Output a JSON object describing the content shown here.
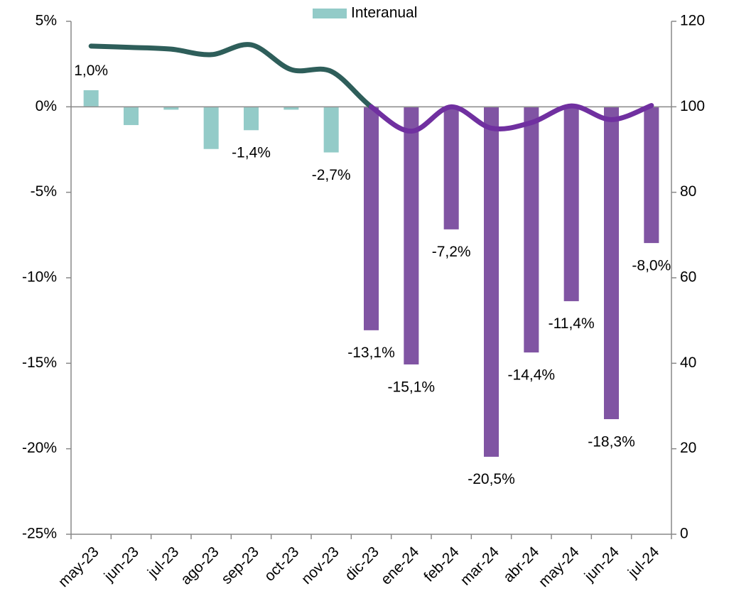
{
  "chart_data": {
    "type": "bar_line",
    "categories": [
      "may-23",
      "jun-23",
      "jul-23",
      "ago-23",
      "sep-23",
      "oct-23",
      "nov-23",
      "dic-23",
      "ene-24",
      "feb-24",
      "mar-24",
      "abr-24",
      "may-24",
      "jun-24",
      "jul-24"
    ],
    "series": [
      {
        "name": "Interanual",
        "color": "#93cbc8",
        "colors": [
          "#93cbc8",
          "#93cbc8",
          "#93cbc8",
          "#93cbc8",
          "#93cbc8",
          "#93cbc8",
          "#93cbc8",
          "#8054a3",
          "#8054a3",
          "#8054a3",
          "#8054a3",
          "#8054a3",
          "#8054a3",
          "#8054a3",
          "#8054a3"
        ],
        "values": [
          1.0,
          -1.1,
          -0.2,
          -2.5,
          -1.4,
          -0.2,
          -2.7,
          -13.1,
          -15.1,
          -7.2,
          -20.5,
          -14.4,
          -11.4,
          -18.3,
          -8.0
        ],
        "value_labels": [
          "1,0%",
          null,
          null,
          null,
          "-1,4%",
          null,
          "-2,7%",
          "-13,1%",
          "-15,1%",
          "-7,2%",
          "-20,5%",
          "-14,4%",
          "-11,4%",
          "-18,3%",
          "-8,0%"
        ]
      },
      {
        "axis": "y2",
        "type": "line",
        "color": "#2e5e5a",
        "colors": [
          "#2e5e5a",
          "#2e5e5a",
          "#2e5e5a",
          "#2e5e5a",
          "#2e5e5a",
          "#2e5e5a",
          "#2e5e5a",
          "#7030a0",
          "#7030a0",
          "#7030a0",
          "#7030a0",
          "#7030a0",
          "#7030a0",
          "#7030a0",
          "#7030a0"
        ],
        "values": [
          114.2,
          113.9,
          113.5,
          112.2,
          114.5,
          108.7,
          108.3,
          100,
          94.3,
          100,
          95,
          96.3,
          100.2,
          97,
          100.3
        ]
      }
    ],
    "ylim": [
      -25,
      5
    ],
    "yticks": [
      {
        "value": 5,
        "label": "5%"
      },
      {
        "value": 0,
        "label": "0%"
      },
      {
        "value": -5,
        "label": "-5%"
      },
      {
        "value": -10,
        "label": "-10%"
      },
      {
        "value": -15,
        "label": "-15%"
      },
      {
        "value": -20,
        "label": "-20%"
      },
      {
        "value": -25,
        "label": "-25%"
      }
    ],
    "y2lim": [
      0,
      120
    ],
    "y2ticks": [
      0,
      20,
      40,
      60,
      80,
      100,
      120
    ],
    "legend": "top"
  }
}
